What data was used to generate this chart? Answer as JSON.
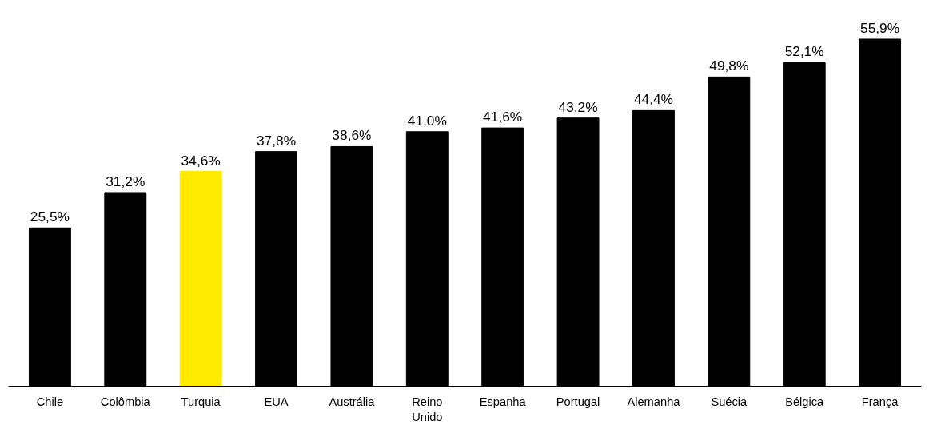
{
  "chart_data": {
    "type": "bar",
    "categories": [
      "Chile",
      "Colômbia",
      "Turquia",
      "EUA",
      "Austrália",
      "Reino\nUnido",
      "Espanha",
      "Portugal",
      "Alemanha",
      "Suécia",
      "Bélgica",
      "França"
    ],
    "values": [
      25.5,
      31.2,
      34.6,
      37.8,
      38.6,
      41.0,
      41.6,
      43.2,
      44.4,
      49.8,
      52.1,
      55.9
    ],
    "colors": [
      "#000000",
      "#000000",
      "#ffea00",
      "#000000",
      "#000000",
      "#000000",
      "#000000",
      "#000000",
      "#000000",
      "#000000",
      "#000000",
      "#000000"
    ],
    "value_labels": [
      "25,5%",
      "31,2%",
      "34,6%",
      "37,8%",
      "38,6%",
      "41,0%",
      "41,6%",
      "43,2%",
      "44,4%",
      "49,8%",
      "52,1%",
      "55,9%"
    ],
    "grid": false
  }
}
